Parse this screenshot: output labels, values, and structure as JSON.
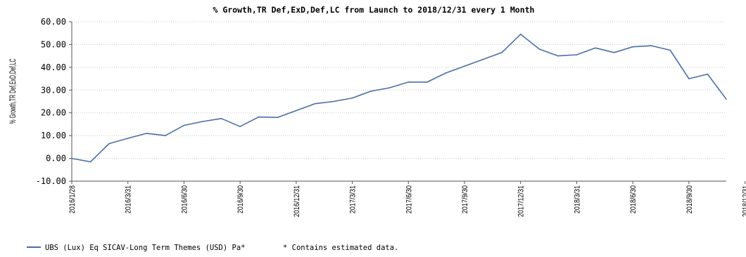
{
  "chart_data": {
    "type": "line",
    "title": "% Growth,TR Def,ExD,Def,LC from Launch to 2018/12/31 every 1 Month",
    "xlabel": "",
    "ylabel": "% Growth,TR Def,ExD,Def,LC",
    "ylim": [
      -10,
      60
    ],
    "yticks": [
      "-10.00",
      "0.00",
      "10.00",
      "20.00",
      "30.00",
      "40.00",
      "50.00",
      "60.00"
    ],
    "grid": "horizontal dotted",
    "line_color": "#4a6fa5",
    "xtick_labels": [
      "2016/1/28",
      "2016/3/31",
      "2016/6/30",
      "2016/9/30",
      "2016/12/31",
      "2017/3/31",
      "2017/6/30",
      "2017/9/30",
      "2017/12/31",
      "2018/3/31",
      "2018/6/30",
      "2018/9/30",
      "2018/12/31"
    ],
    "series": [
      {
        "name": "UBS (Lux) Eq SICAV-Long Term Themes (USD) Pa*",
        "values": [
          0,
          -1.5,
          6.5,
          8.8,
          11,
          10,
          14.5,
          16.2,
          17.5,
          14,
          18.2,
          18,
          21,
          24,
          25,
          26.5,
          29.5,
          31,
          33.5,
          33.5,
          37.5,
          40.5,
          43.5,
          46.5,
          54.5,
          48,
          45,
          45.5,
          48.5,
          46.5,
          49,
          49.5,
          47.5,
          35,
          37,
          26
        ]
      }
    ],
    "legend_position": "bottom-left",
    "note": "*  Contains estimated data."
  }
}
